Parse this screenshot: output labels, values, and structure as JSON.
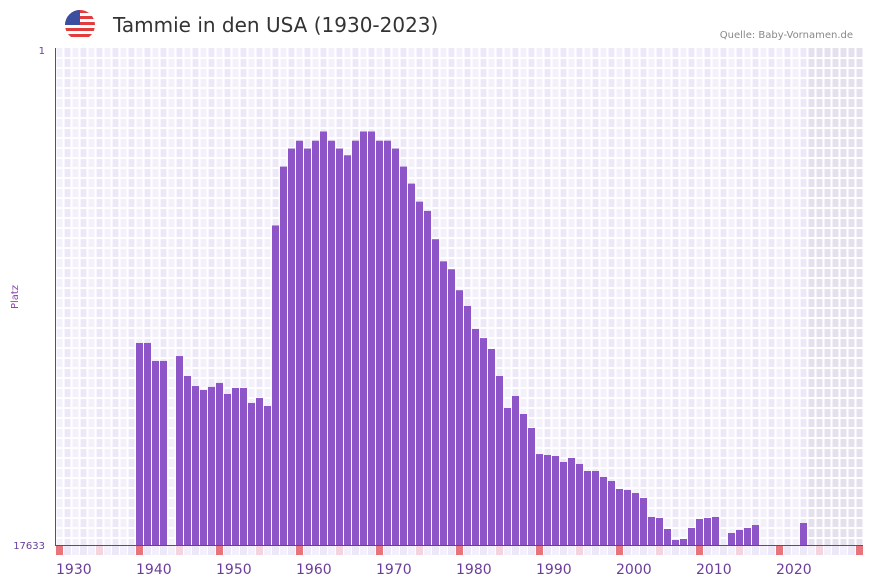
{
  "header": {
    "title": "Tammie in den USA (1930-2023)",
    "source": "Quelle: Baby-Vornamen.de",
    "flag_icon": "us-flag-icon"
  },
  "colors": {
    "bar": "#8e55c8",
    "axis": "#6a3d9a",
    "decade_marker": "#e8747c",
    "mid_marker": "#f5d5dd",
    "future_shade": "#e4e0ee"
  },
  "chart_data": {
    "type": "bar",
    "title": "Tammie in den USA (1930-2023)",
    "xlabel": "",
    "ylabel": "Platz",
    "y_scale": "log",
    "y_inverted": true,
    "ylim": [
      1,
      17633
    ],
    "y_ticks": [
      "1",
      "17633"
    ],
    "xlim": [
      1930,
      2029
    ],
    "x_ticks": [
      "1930",
      "1940",
      "1950",
      "1960",
      "1970",
      "1980",
      "1990",
      "2000",
      "2010",
      "2020"
    ],
    "grid": true,
    "years": [
      1940,
      1941,
      1942,
      1943,
      1945,
      1946,
      1947,
      1948,
      1949,
      1950,
      1951,
      1952,
      1953,
      1954,
      1955,
      1956,
      1957,
      1958,
      1959,
      1960,
      1961,
      1962,
      1963,
      1964,
      1965,
      1966,
      1967,
      1968,
      1969,
      1970,
      1971,
      1972,
      1973,
      1974,
      1975,
      1976,
      1977,
      1978,
      1979,
      1980,
      1981,
      1982,
      1983,
      1984,
      1985,
      1986,
      1987,
      1988,
      1989,
      1990,
      1991,
      1992,
      1993,
      1994,
      1995,
      1996,
      1997,
      1998,
      1999,
      2000,
      2001,
      2002,
      2003,
      2004,
      2005,
      2006,
      2007,
      2008,
      2009,
      2010,
      2011,
      2012,
      2014,
      2015,
      2016,
      2017,
      2023
    ],
    "ranks": [
      326,
      326,
      465,
      465,
      422,
      626,
      763,
      825,
      777,
      718,
      893,
      793,
      793,
      1066,
      967,
      1132,
      32,
      10,
      7,
      6,
      7,
      6,
      5,
      6,
      7,
      8,
      6,
      5,
      5,
      6,
      6,
      7,
      10,
      14,
      20,
      24,
      42,
      65,
      76,
      115,
      157,
      247,
      296,
      367,
      626,
      1176,
      929,
      1326,
      1749,
      2924,
      2981,
      3039,
      3421,
      3163,
      3558,
      4088,
      4088,
      4601,
      4980,
      5833,
      5950,
      6315,
      6970,
      10140,
      10345,
      12855,
      15970,
      15660,
      12600,
      10555,
      10345,
      10140,
      13910,
      13110,
      12600,
      11880,
      11420
    ]
  }
}
